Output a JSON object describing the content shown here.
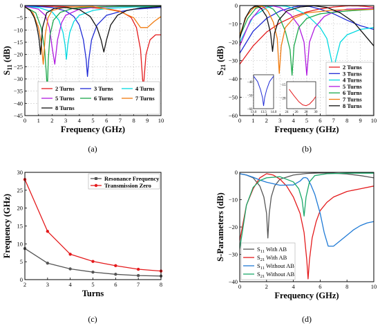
{
  "figure_labels": [
    "(a)",
    "(b)",
    "(c)",
    "(d)"
  ],
  "chart_data": [
    {
      "id": "a",
      "type": "line",
      "xlabel": "Frequency (GHz)",
      "ylabel": "S11 (dB)",
      "ylabel_main": "S",
      "ylabel_sub": "11",
      "ylabel_unit": " (dB)",
      "xlim": [
        0,
        10
      ],
      "ylim": [
        -45,
        0
      ],
      "xticks": [
        0,
        1,
        2,
        3,
        4,
        5,
        6,
        7,
        8,
        9,
        10
      ],
      "yticks": [
        0,
        -5,
        -10,
        -15,
        -20,
        -25,
        -30,
        -35,
        -40,
        -45
      ],
      "grid": true,
      "legend": "bottom-center",
      "series": [
        {
          "name": "2 Turns",
          "color": "#e41a1c",
          "x": [
            0,
            2,
            4,
            6,
            7,
            7.8,
            8.2,
            8.5,
            8.7,
            8.9,
            9.2,
            9.6,
            10
          ],
          "y": [
            -0.2,
            -0.3,
            -0.6,
            -1.3,
            -2.3,
            -4.8,
            -9,
            -18,
            -34,
            -20,
            -14,
            -12,
            -12
          ]
        },
        {
          "name": "3 Turns",
          "color": "#1f2ad6",
          "x": [
            0,
            1,
            2,
            3,
            3.6,
            4.0,
            4.3,
            4.5,
            4.6,
            4.7,
            4.9,
            5.3,
            6,
            7,
            8,
            10
          ],
          "y": [
            -0.2,
            -0.4,
            -0.8,
            -2.2,
            -4.5,
            -8,
            -14,
            -22,
            -29,
            -22,
            -14,
            -8,
            -4,
            -2.5,
            -1.5,
            -0.8
          ]
        },
        {
          "name": "4 Turns",
          "color": "#00d8e0",
          "x": [
            0,
            1,
            2,
            2.5,
            2.8,
            2.95,
            3.05,
            3.15,
            3.3,
            3.6,
            4,
            5,
            6,
            8,
            10
          ],
          "y": [
            -0.3,
            -0.8,
            -2.6,
            -6,
            -11,
            -16,
            -22,
            -16,
            -11,
            -6.5,
            -4,
            -2,
            -1.2,
            -0.6,
            -0.4
          ]
        },
        {
          "name": "5 Turns",
          "color": "#b01ae0",
          "x": [
            0,
            1,
            1.5,
            1.8,
            2.0,
            2.2,
            2.4,
            2.7,
            3,
            4,
            5,
            7,
            10
          ],
          "y": [
            -0.3,
            -1.5,
            -4,
            -9,
            -17,
            -24,
            -14,
            -7,
            -4,
            -1.5,
            -0.8,
            -0.4,
            -0.2
          ]
        },
        {
          "name": "6 Turns",
          "color": "#1aa84a",
          "x": [
            0,
            0.8,
            1.2,
            1.45,
            1.58,
            1.65,
            1.72,
            1.85,
            2.1,
            2.6,
            3.5,
            5,
            7,
            10
          ],
          "y": [
            -0.5,
            -3,
            -9,
            -18,
            -28,
            -35,
            -22,
            -12,
            -6,
            -2.8,
            -1.2,
            -0.6,
            -0.3,
            -0.2
          ]
        },
        {
          "name": "7 Turns",
          "color": "#f07a0e",
          "x": [
            0,
            0.6,
            1.0,
            1.2,
            1.35,
            1.5,
            1.7,
            2.0,
            3,
            5,
            7,
            8,
            8.5,
            9,
            9.5,
            10
          ],
          "y": [
            -0.5,
            -3,
            -9,
            -15,
            -24,
            -12,
            -5,
            -2,
            -0.6,
            -0.4,
            -2.5,
            -5,
            -9,
            -9,
            -6.5,
            -4.5
          ]
        },
        {
          "name": "8 Turns",
          "color": "#111111",
          "x": [
            0,
            0.4,
            0.7,
            0.9,
            1.05,
            1.15,
            1.3,
            1.6,
            2.2,
            3,
            4,
            4.8,
            5.3,
            5.6,
            5.8,
            6.0,
            6.3,
            6.8,
            7.5,
            8.5,
            10
          ],
          "y": [
            -0.5,
            -2,
            -5,
            -9,
            -14,
            -20,
            -9,
            -3,
            -1,
            -0.8,
            -1.6,
            -4.5,
            -9,
            -14,
            -19,
            -14,
            -8,
            -4,
            -2,
            -1,
            -0.4
          ]
        }
      ]
    },
    {
      "id": "b",
      "type": "line",
      "xlabel": "Frequency (GHz)",
      "ylabel": "S21 (dB)",
      "ylabel_main": "S",
      "ylabel_sub": "21",
      "ylabel_unit": " (dB)",
      "xlim": [
        0,
        10
      ],
      "ylim": [
        -60,
        0
      ],
      "xticks": [
        0,
        1,
        2,
        3,
        4,
        5,
        6,
        7,
        8,
        9,
        10
      ],
      "yticks": [
        0,
        -10,
        -20,
        -30,
        -40,
        -50,
        -60
      ],
      "grid": true,
      "legend": "right",
      "series": [
        {
          "name": "2 Turns",
          "color": "#e41a1c",
          "x": [
            0,
            1,
            2,
            3,
            4,
            5,
            6,
            7,
            8,
            8.7,
            9.3,
            10
          ],
          "y": [
            -32,
            -22,
            -14.5,
            -9.5,
            -6,
            -3.5,
            -1.8,
            -0.8,
            -0.2,
            -0.1,
            -0.4,
            -0.9
          ]
        },
        {
          "name": "3 Turns",
          "color": "#1f2ad6",
          "x": [
            0,
            1,
            2,
            3,
            4,
            4.6,
            5.2,
            6,
            7,
            8,
            9,
            10
          ],
          "y": [
            -26,
            -14,
            -7,
            -3,
            -0.8,
            -0.1,
            -0.5,
            -2,
            -4.5,
            -8,
            -11,
            -13
          ]
        },
        {
          "name": "4 Turns",
          "color": "#00d8e0",
          "x": [
            0,
            1,
            2,
            2.5,
            3.0,
            3.5,
            4,
            5,
            6,
            6.5,
            6.85,
            7.0,
            7.15,
            7.5,
            8,
            9,
            10
          ],
          "y": [
            -20,
            -6,
            -1.2,
            -0.3,
            -0.1,
            -0.4,
            -1.5,
            -5,
            -12,
            -18,
            -30,
            -38,
            -30,
            -20,
            -16,
            -13,
            -12
          ]
        },
        {
          "name": "5 Turns",
          "color": "#b01ae0",
          "x": [
            0,
            0.8,
            1.5,
            2.0,
            2.4,
            3,
            3.8,
            4.4,
            4.8,
            5.0,
            5.2,
            5.6,
            6.3,
            7,
            8,
            10
          ],
          "y": [
            -22,
            -8,
            -2,
            -0.4,
            -0.1,
            -1,
            -5,
            -11,
            -20,
            -38,
            -20,
            -12,
            -6,
            -3.5,
            -2,
            -1.5
          ]
        },
        {
          "name": "6 Turns",
          "color": "#1aa84a",
          "x": [
            0,
            0.6,
            1.2,
            1.7,
            2.0,
            2.5,
            3.0,
            3.4,
            3.75,
            3.9,
            4.05,
            4.4,
            5,
            6,
            8,
            10
          ],
          "y": [
            -17,
            -7,
            -1.5,
            -0.3,
            -0.2,
            -2,
            -7,
            -14,
            -24,
            -38,
            -22,
            -12,
            -7,
            -4.5,
            -3,
            -2
          ]
        },
        {
          "name": "7 Turns",
          "color": "#f07a0e",
          "x": [
            0,
            0.5,
            1.0,
            1.4,
            1.7,
            2.1,
            2.5,
            2.8,
            2.95,
            3.1,
            3.4,
            4,
            5,
            7,
            10
          ],
          "y": [
            -16,
            -6,
            -1.5,
            -0.3,
            -0.5,
            -3,
            -9,
            -18,
            -37,
            -22,
            -12,
            -7,
            -4,
            -2.5,
            -2
          ]
        },
        {
          "name": "8 Turns",
          "color": "#111111",
          "x": [
            0,
            0.4,
            0.8,
            1.1,
            1.3,
            1.6,
            2.0,
            2.3,
            2.45,
            2.6,
            2.9,
            3.5,
            4.5,
            5.5,
            6.5,
            7.5,
            8.5,
            10
          ],
          "y": [
            -18,
            -7,
            -2,
            -0.5,
            -0.3,
            -1.5,
            -6,
            -15,
            -25,
            -15,
            -8,
            -3,
            -0.8,
            -0.1,
            -1,
            -4,
            -9,
            -22
          ]
        }
      ],
      "insets": [
        {
          "xlim": [
            13.0,
            14.0
          ],
          "ylim": [
            -60,
            -35
          ],
          "xticks": [
            13.0,
            13.5,
            14.0
          ],
          "yticks": [
            -40,
            -50,
            -60
          ],
          "color": "#1f2ad6",
          "x": [
            13.0,
            13.2,
            13.35,
            13.45,
            13.5,
            13.55,
            13.65,
            13.8,
            14.0
          ],
          "y": [
            -36,
            -40,
            -46,
            -52,
            -58,
            -52,
            -46,
            -40,
            -36
          ]
        },
        {
          "xlim": [
            24,
            30
          ],
          "ylim": [
            -24,
            -14
          ],
          "xticks": [
            24,
            26,
            28,
            30
          ],
          "yticks": [
            -15,
            -20
          ],
          "color": "#e41a1c",
          "x": [
            24.5,
            25.5,
            26.5,
            27.3,
            28,
            28.7,
            29.5,
            30
          ],
          "y": [
            -16.8,
            -19.2,
            -21.4,
            -22.6,
            -22.9,
            -22.3,
            -20.8,
            -19.5
          ]
        }
      ]
    },
    {
      "id": "c",
      "type": "line",
      "xlabel": "Turns",
      "ylabel": "Frequency (GHz)",
      "xlim": [
        2,
        8
      ],
      "ylim": [
        0,
        30
      ],
      "xticks": [
        2,
        3,
        4,
        5,
        6,
        7,
        8
      ],
      "yticks": [
        0,
        5,
        10,
        15,
        20,
        25,
        30
      ],
      "grid": false,
      "legend": "top-right",
      "series": [
        {
          "name": "Resonance Frequency",
          "color": "#555555",
          "x": [
            2,
            3,
            4,
            5,
            6,
            7,
            8
          ],
          "y": [
            8.7,
            4.6,
            3.0,
            2.1,
            1.5,
            1.15,
            1.0
          ]
        },
        {
          "name": "Transmission Zero",
          "color": "#e41a1c",
          "x": [
            2,
            3,
            4,
            5,
            6,
            7,
            8
          ],
          "y": [
            28.0,
            13.5,
            7.1,
            5.1,
            3.9,
            2.9,
            2.4
          ]
        }
      ]
    },
    {
      "id": "d",
      "type": "line",
      "xlabel": "Frequency (GHz)",
      "ylabel": "S-Parameters (dB)",
      "xlim": [
        0,
        10
      ],
      "ylim": [
        -40,
        0
      ],
      "xticks": [
        0,
        2,
        4,
        6,
        8,
        10
      ],
      "yticks": [
        0,
        -10,
        -20,
        -30,
        -40
      ],
      "grid": false,
      "legend": "bottom-left",
      "series": [
        {
          "name": "S11 With AB",
          "sub_main": "S",
          "sub": "11",
          "suffix": " With AB",
          "color": "#555555",
          "x": [
            0,
            0.5,
            1.0,
            1.5,
            1.8,
            2.0,
            2.1,
            2.2,
            2.35,
            2.6,
            3,
            4,
            5,
            6,
            7,
            8,
            9,
            10
          ],
          "y": [
            -0.5,
            -1,
            -2,
            -5,
            -9,
            -15,
            -24,
            -15,
            -9,
            -5,
            -2.5,
            -1,
            -0.4,
            -0.2,
            -0.3,
            -0.6,
            -1.2,
            -2
          ]
        },
        {
          "name": "S21 With AB",
          "sub_main": "S",
          "sub": "21",
          "suffix": " With AB",
          "color": "#e41a1c",
          "x": [
            0,
            0.5,
            1.0,
            1.5,
            2.0,
            2.5,
            3.0,
            3.5,
            4.0,
            4.5,
            4.8,
            5.0,
            5.1,
            5.2,
            5.4,
            5.7,
            6.0,
            6.5,
            7,
            8,
            9,
            10
          ],
          "y": [
            -25,
            -12,
            -6,
            -2,
            -0.5,
            -1,
            -2.5,
            -5,
            -9,
            -15,
            -22,
            -32,
            -39,
            -32,
            -24,
            -18,
            -14,
            -11,
            -9,
            -7,
            -6,
            -5
          ]
        },
        {
          "name": "S11 Without AB",
          "sub_main": "S",
          "sub": "11",
          "suffix": " Without AB",
          "color": "#1f7ad6",
          "x": [
            0,
            0.5,
            1.0,
            1.5,
            2.0,
            3.0,
            4.0,
            4.5,
            4.75,
            4.9,
            5.05,
            5.3,
            5.6,
            6.0,
            6.3,
            6.6,
            7.0,
            7.5,
            8.0,
            8.5,
            9.0,
            9.5,
            10
          ],
          "y": [
            -0.5,
            -1,
            -1.8,
            -2.8,
            -3.6,
            -4.7,
            -4.6,
            -3.2,
            -2,
            -1.9,
            -2.2,
            -4.5,
            -8,
            -15,
            -22,
            -27,
            -27,
            -25,
            -23,
            -21,
            -19.5,
            -18.5,
            -18
          ]
        },
        {
          "name": "S21 Without AB",
          "sub_main": "S",
          "sub": "21",
          "suffix": " Without AB",
          "color": "#1aa86a",
          "x": [
            0,
            0.5,
            1.0,
            1.5,
            2.0,
            3.0,
            4.0,
            4.4,
            4.65,
            4.8,
            4.95,
            5.2,
            5.6,
            6.5,
            8,
            10
          ],
          "y": [
            -28,
            -12,
            -5.5,
            -3,
            -2,
            -1.6,
            -3.5,
            -6,
            -10,
            -16,
            -9,
            -3.5,
            -1.2,
            -0.5,
            -0.3,
            -0.3
          ]
        }
      ]
    }
  ]
}
